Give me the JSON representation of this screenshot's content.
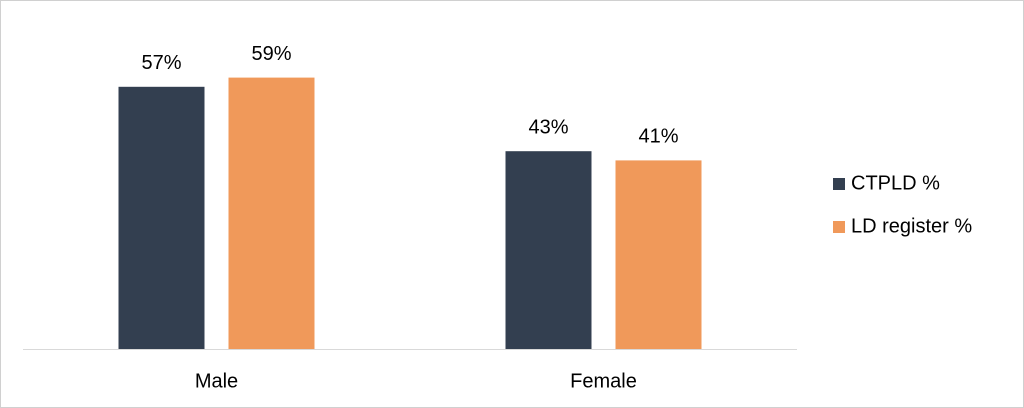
{
  "chart_data": {
    "type": "bar",
    "categories": [
      "Male",
      "Female"
    ],
    "series": [
      {
        "name": "CTPLD %",
        "color": "#333f50",
        "values": [
          57,
          43
        ],
        "value_labels": [
          "57%",
          "43%"
        ]
      },
      {
        "name": "LD register %",
        "color": "#f0995a",
        "values": [
          59,
          41
        ],
        "value_labels": [
          "59%",
          "41%"
        ]
      }
    ],
    "legend": "right"
  }
}
